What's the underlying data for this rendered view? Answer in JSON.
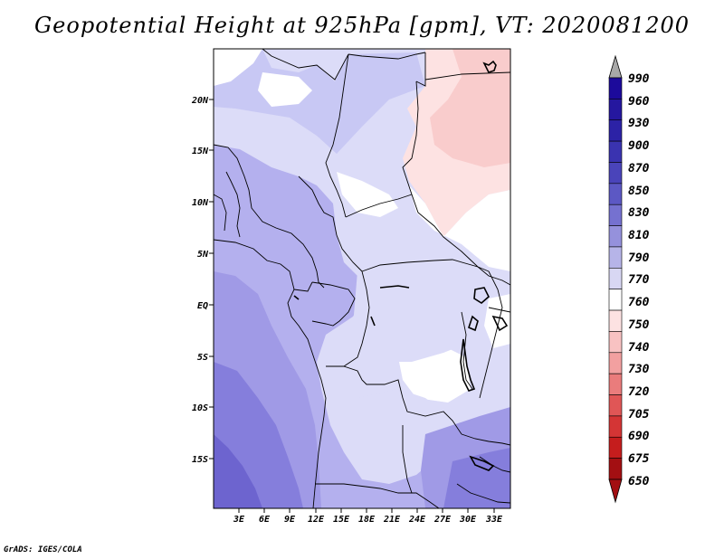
{
  "title": "Geopotential Height at 925hPa [gpm], VT: 2020081200",
  "footer": "GrADS: IGES/COLA",
  "map": {
    "lat_labels": [
      "20N",
      "15N",
      "10N",
      "5N",
      "EQ",
      "5S",
      "10S",
      "15S"
    ],
    "lon_labels": [
      "3E",
      "6E",
      "9E",
      "12E",
      "15E",
      "18E",
      "21E",
      "24E",
      "27E",
      "30E",
      "33E"
    ]
  },
  "colorbar": {
    "levels": [
      "990",
      "960",
      "930",
      "900",
      "870",
      "850",
      "830",
      "810",
      "790",
      "770",
      "760",
      "750",
      "740",
      "730",
      "720",
      "705",
      "690",
      "675",
      "650"
    ],
    "colors": [
      "#1c0a9b",
      "#25179f",
      "#2c22a6",
      "#3a33b0",
      "#4a44ba",
      "#5c58c4",
      "#7571d0",
      "#9591dc",
      "#b6b4e8",
      "#d8d7f3",
      "#ffffff",
      "#fde2e2",
      "#f8c2c2",
      "#f2a0a0",
      "#ea7c7c",
      "#e05656",
      "#d43535",
      "#c51d1d",
      "#a30f12"
    ],
    "top_arrow_color": "#a8a8a8"
  },
  "field_colors": {
    "lavender_light": "#dcdcf8",
    "lavender_mid": "#c8c8f4",
    "purple_light": "#b4b0ee",
    "purple_mid": "#a09ae6",
    "purple_dark": "#857edc",
    "purple_deep": "#6d64cf",
    "white": "#ffffff",
    "pink_light": "#fde2e2",
    "pink_mid": "#f9cccc"
  }
}
